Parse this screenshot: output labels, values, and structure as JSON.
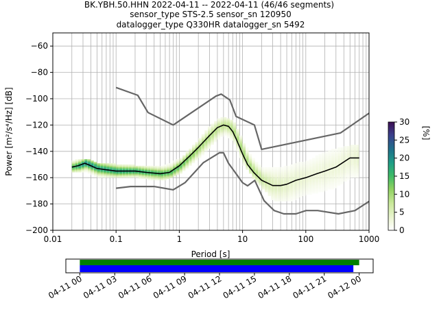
{
  "header": {
    "title_line1": "BK.YBH.50.HHN   2022-04-11 -- 2022-04-11  (46/46 segments)",
    "title_line2": "sensor_type STS-2.5 sensor_sn 120950",
    "title_line3": "datalogger_type Q330HR datalogger_sn 5492"
  },
  "colors": {
    "model_curves": "#666666",
    "mean_curve": "#000000",
    "grid": "#b0b0b0",
    "coverage_data": "#0000ff",
    "coverage_gaps": "#008000"
  },
  "chart_data": [
    {
      "type": "heatmap",
      "title": "",
      "xlabel": "Period [s]",
      "ylabel": "Power [m²/s⁴/Hz] [dB]",
      "xscale": "log",
      "xlim": [
        0.01,
        1000
      ],
      "ylim": [
        -200,
        -50
      ],
      "x_ticks": [
        "0.01",
        "0.1",
        "1",
        "10",
        "100",
        "1000"
      ],
      "y_ticks": [
        "−200",
        "−180",
        "−160",
        "−140",
        "−120",
        "−100",
        "−80",
        "−60"
      ],
      "grid": true,
      "colorbar": {
        "label": "[%]",
        "range": [
          0,
          30
        ],
        "ticks": [
          "0",
          "5",
          "10",
          "15",
          "20",
          "25",
          "30"
        ],
        "colormap": "pqlx-like (white → light green → green → teal → dark blue → purple)"
      },
      "series": [
        {
          "name": "",
          "kind": "mean",
          "x": [
            0.02,
            0.025,
            0.032,
            0.04,
            0.05,
            0.07,
            0.1,
            0.15,
            0.2,
            0.3,
            0.5,
            0.7,
            1,
            1.5,
            2,
            3,
            4,
            5,
            6,
            7,
            8,
            10,
            12,
            15,
            20,
            30,
            40,
            50,
            70,
            100,
            150,
            200,
            300,
            500,
            700
          ],
          "y": [
            -152,
            -151,
            -149,
            -151,
            -153,
            -154,
            -155,
            -155,
            -155,
            -156,
            -157,
            -156,
            -151,
            -143,
            -137,
            -128,
            -122,
            -120,
            -121,
            -125,
            -131,
            -142,
            -150,
            -156,
            -162,
            -166,
            -166,
            -165,
            -162,
            -160,
            -157,
            -155,
            -152,
            -145,
            -145
          ]
        },
        {
          "name": "",
          "kind": "high-noise-model",
          "x": [
            0.1,
            0.22,
            0.32,
            0.8,
            3.8,
            4.6,
            6.3,
            7.9,
            15.4,
            20,
            354.8,
            1000
          ],
          "y": [
            -91.5,
            -97.4,
            -110.5,
            -120,
            -98,
            -96.5,
            -101,
            -113.5,
            -120,
            -138.5,
            -126,
            -111
          ]
        },
        {
          "name": "",
          "kind": "low-noise-model",
          "x": [
            0.1,
            0.17,
            0.4,
            0.8,
            1.24,
            2.4,
            4.3,
            5,
            6,
            10,
            12,
            15.6,
            21.9,
            31.6,
            45,
            70,
            101,
            154,
            328,
            600,
            1000
          ],
          "y": [
            -168,
            -166.7,
            -166.7,
            -169.2,
            -163.7,
            -148.6,
            -141.1,
            -141.1,
            -149,
            -163.8,
            -166.2,
            -162.1,
            -177.5,
            -185,
            -187.5,
            -187.5,
            -185,
            -185,
            -187.5,
            -185,
            -178
          ]
        }
      ],
      "density_bins": [
        {
          "x": 0.02,
          "y_min": -156,
          "y_max": -147,
          "pct": 15
        },
        {
          "x": 0.03,
          "y_min": -156,
          "y_max": -146,
          "pct": 20
        },
        {
          "x": 0.05,
          "y_min": -160,
          "y_max": -149,
          "pct": 18
        },
        {
          "x": 0.1,
          "y_min": -160,
          "y_max": -150,
          "pct": 18
        },
        {
          "x": 0.2,
          "y_min": -160,
          "y_max": -151,
          "pct": 17
        },
        {
          "x": 0.5,
          "y_min": -162,
          "y_max": -152,
          "pct": 15
        },
        {
          "x": 1,
          "y_min": -157,
          "y_max": -146,
          "pct": 14
        },
        {
          "x": 2,
          "y_min": -145,
          "y_max": -131,
          "pct": 10
        },
        {
          "x": 3,
          "y_min": -136,
          "y_max": -120,
          "pct": 9
        },
        {
          "x": 4,
          "y_min": -130,
          "y_max": -115,
          "pct": 8
        },
        {
          "x": 5,
          "y_min": -128,
          "y_max": -114,
          "pct": 8
        },
        {
          "x": 7,
          "y_min": -134,
          "y_max": -118,
          "pct": 9
        },
        {
          "x": 10,
          "y_min": -150,
          "y_max": -134,
          "pct": 10
        },
        {
          "x": 15,
          "y_min": -162,
          "y_max": -147,
          "pct": 9
        },
        {
          "x": 20,
          "y_min": -168,
          "y_max": -151,
          "pct": 7
        },
        {
          "x": 30,
          "y_min": -178,
          "y_max": -152,
          "pct": 5
        },
        {
          "x": 50,
          "y_min": -178,
          "y_max": -150,
          "pct": 4
        },
        {
          "x": 100,
          "y_min": -176,
          "y_max": -148,
          "pct": 3
        },
        {
          "x": 200,
          "y_min": -172,
          "y_max": -140,
          "pct": 3
        },
        {
          "x": 500,
          "y_min": -168,
          "y_max": -136,
          "pct": 3
        },
        {
          "x": 700,
          "y_min": -165,
          "y_max": -135,
          "pct": 4
        }
      ]
    },
    {
      "type": "timeline",
      "title": "",
      "x_ticks": [
        "04-11 00",
        "04-11 03",
        "04-11 06",
        "04-11 09",
        "04-11 12",
        "04-11 15",
        "04-11 18",
        "04-11 21",
        "04-12 00"
      ],
      "x_tick_hours": [
        0,
        3,
        6,
        9,
        12,
        15,
        18,
        21,
        24
      ],
      "xlim_hours": [
        -1.2,
        25.2
      ],
      "bars": [
        {
          "name": "",
          "color": "#008000",
          "start_hour": 0,
          "end_hour": 24
        },
        {
          "name": "",
          "color": "#0000ff",
          "start_hour": 0,
          "end_hour": 23.5
        }
      ]
    }
  ]
}
